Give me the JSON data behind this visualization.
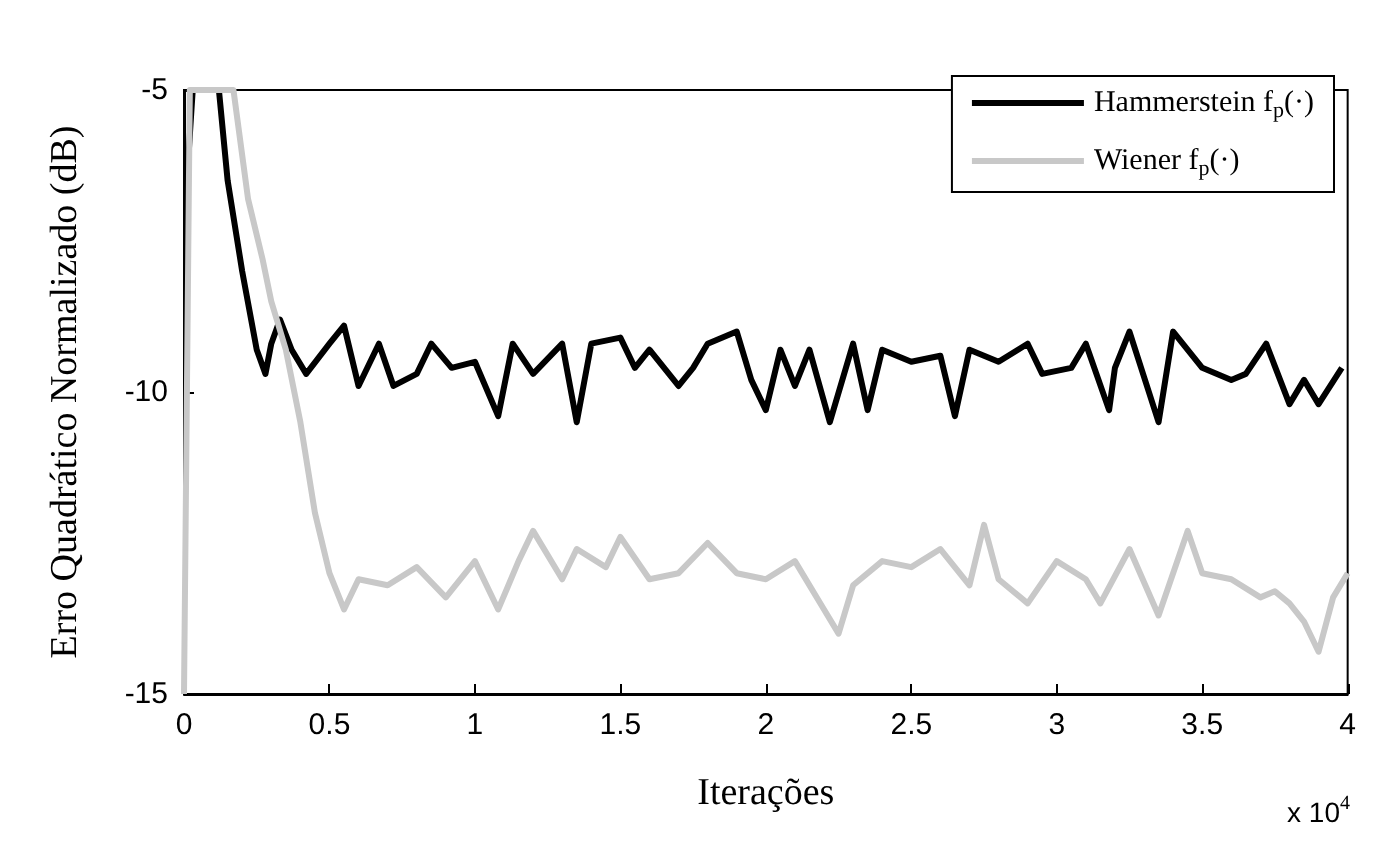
{
  "chart_data": {
    "type": "line",
    "xlabel": "Iterações",
    "ylabel": "Erro Quadrático Normalizado (dB)",
    "annotations": [
      "x 10$^{4}$"
    ],
    "xlim": [
      0,
      4
    ],
    "xticks": [
      0,
      0.5,
      1,
      1.5,
      2,
      2.5,
      3,
      3.5,
      4
    ],
    "ylim": [
      -15,
      -5
    ],
    "yticks": [
      -15,
      -10,
      -5
    ],
    "grid": false,
    "legend": "top right",
    "marker": "none",
    "line_style": "solid",
    "series": [
      {
        "name": "Hammerstein f$_{p}$(·)",
        "color": "#000000",
        "x": [
          0.01,
          0.03,
          0.12,
          0.15,
          0.2,
          0.25,
          0.28,
          0.3,
          0.33,
          0.37,
          0.42,
          0.5,
          0.55,
          0.6,
          0.67,
          0.72,
          0.8,
          0.85,
          0.92,
          1.0,
          1.08,
          1.13,
          1.2,
          1.3,
          1.35,
          1.4,
          1.5,
          1.55,
          1.6,
          1.7,
          1.75,
          1.8,
          1.9,
          1.95,
          2.0,
          2.05,
          2.1,
          2.15,
          2.22,
          2.3,
          2.35,
          2.4,
          2.5,
          2.6,
          2.65,
          2.7,
          2.8,
          2.9,
          2.95,
          3.05,
          3.1,
          3.18,
          3.2,
          3.25,
          3.35,
          3.4,
          3.5,
          3.6,
          3.65,
          3.72,
          3.8,
          3.85,
          3.9,
          3.98
        ],
        "values": [
          -6.5,
          -5,
          -5,
          -6.5,
          -8,
          -9.3,
          -9.7,
          -9.2,
          -8.8,
          -9.3,
          -9.7,
          -9.2,
          -8.9,
          -9.9,
          -9.2,
          -9.9,
          -9.7,
          -9.2,
          -9.6,
          -9.5,
          -10.4,
          -9.2,
          -9.7,
          -9.2,
          -10.5,
          -9.2,
          -9.1,
          -9.6,
          -9.3,
          -9.9,
          -9.6,
          -9.2,
          -9.0,
          -9.8,
          -10.3,
          -9.3,
          -9.9,
          -9.3,
          -10.5,
          -9.2,
          -10.3,
          -9.3,
          -9.5,
          -9.4,
          -10.4,
          -9.3,
          -9.5,
          -9.2,
          -9.7,
          -9.6,
          -9.2,
          -10.3,
          -9.6,
          -9.0,
          -10.5,
          -9.0,
          -9.6,
          -9.8,
          -9.7,
          -9.2,
          -10.2,
          -9.8,
          -10.2,
          -9.6
        ]
      },
      {
        "name": "Wiener f$_{p}$(·)",
        "color": "#c8c8c8",
        "x": [
          0,
          0.02,
          0.17,
          0.22,
          0.27,
          0.3,
          0.35,
          0.4,
          0.45,
          0.5,
          0.55,
          0.6,
          0.7,
          0.8,
          0.9,
          1.0,
          1.08,
          1.15,
          1.2,
          1.3,
          1.35,
          1.45,
          1.5,
          1.6,
          1.7,
          1.8,
          1.9,
          2.0,
          2.1,
          2.2,
          2.25,
          2.3,
          2.4,
          2.5,
          2.6,
          2.7,
          2.75,
          2.8,
          2.9,
          3.0,
          3.1,
          3.15,
          3.25,
          3.35,
          3.45,
          3.5,
          3.6,
          3.7,
          3.75,
          3.8,
          3.85,
          3.9,
          3.95,
          4.0
        ],
        "values": [
          -15,
          -5,
          -5,
          -6.8,
          -7.8,
          -8.5,
          -9.3,
          -10.5,
          -12,
          -13,
          -13.6,
          -13.1,
          -13.2,
          -12.9,
          -13.4,
          -12.8,
          -13.6,
          -12.8,
          -12.3,
          -13.1,
          -12.6,
          -12.9,
          -12.4,
          -13.1,
          -13.0,
          -12.5,
          -13.0,
          -13.1,
          -12.8,
          -13.6,
          -14.0,
          -13.2,
          -12.8,
          -12.9,
          -12.6,
          -13.2,
          -12.2,
          -13.1,
          -13.5,
          -12.8,
          -13.1,
          -13.5,
          -12.6,
          -13.7,
          -12.3,
          -13.0,
          -13.1,
          -13.4,
          -13.3,
          -13.5,
          -13.8,
          -14.3,
          -13.4,
          -13.0
        ]
      }
    ]
  }
}
